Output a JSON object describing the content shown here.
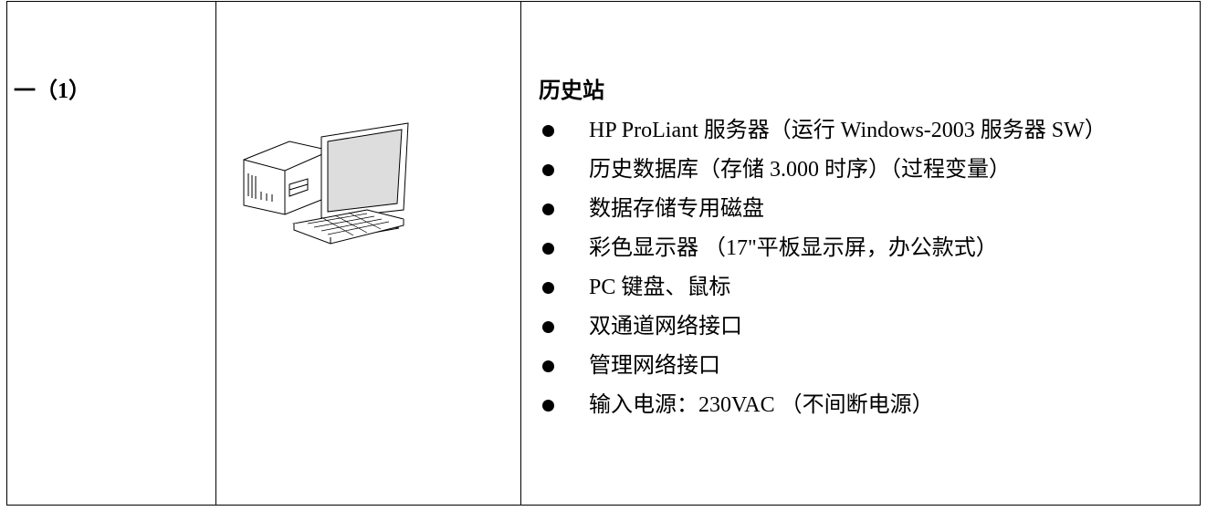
{
  "table": {
    "rows": [
      {
        "label": "一（1）",
        "title": "历史站",
        "items": [
          "HP ProLiant 服务器（运行 Windows-2003 服务器 SW）",
          "历史数据库（存储 3.000 时序）（过程变量）",
          "数据存储专用磁盘",
          "彩色显示器 （17\"平板显示屏，办公款式）",
          "PC 键盘、鼠标",
          "双通道网络接口",
          "管理网络接口",
          "输入电源：230VAC （不间断电源）"
        ]
      }
    ]
  }
}
